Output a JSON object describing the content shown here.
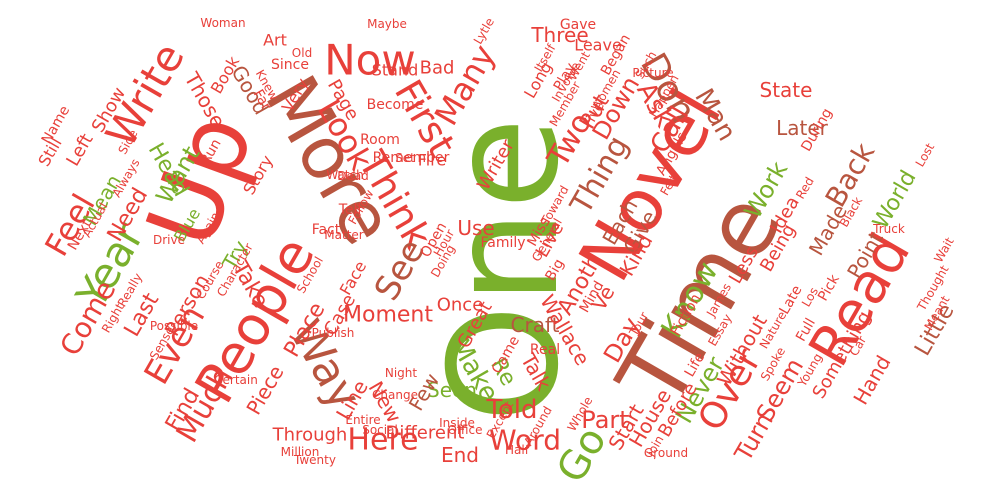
{
  "colors": {
    "red": "#e8403a",
    "brown": "#b8553f",
    "green": "#7ab02c",
    "salmon": "#e86b5a",
    "lightgreen": "#8cbf3f"
  },
  "words": [
    {
      "text": "One",
      "color": "green"
    },
    {
      "text": "Time",
      "color": "brown"
    },
    {
      "text": "Up",
      "color": "red"
    },
    {
      "text": "More",
      "color": "brown"
    },
    {
      "text": "Novel",
      "color": "red"
    },
    {
      "text": "Read",
      "color": "red"
    },
    {
      "text": "People",
      "color": "red"
    },
    {
      "text": "Write",
      "color": "red"
    },
    {
      "text": "Year",
      "color": "green"
    },
    {
      "text": "Way",
      "color": "brown"
    },
    {
      "text": "Now",
      "color": "red"
    },
    {
      "text": "First",
      "color": "red"
    },
    {
      "text": "Think",
      "color": "red"
    },
    {
      "text": "Go",
      "color": "green"
    },
    {
      "text": "See",
      "color": "brown"
    },
    {
      "text": "Even",
      "color": "red"
    },
    {
      "text": "Over",
      "color": "red"
    },
    {
      "text": "Look",
      "color": "red"
    },
    {
      "text": "Feel",
      "color": "red"
    },
    {
      "text": "Don",
      "color": "brown"
    },
    {
      "text": "Thing",
      "color": "brown"
    },
    {
      "text": "Know",
      "color": "green"
    },
    {
      "text": "Many",
      "color": "red"
    },
    {
      "text": "Two",
      "color": "red"
    },
    {
      "text": "Much",
      "color": "red"
    },
    {
      "text": "Here",
      "color": "red"
    },
    {
      "text": "Word",
      "color": "red"
    },
    {
      "text": "Make",
      "color": "green"
    },
    {
      "text": "Come",
      "color": "red"
    },
    {
      "text": "Back",
      "color": "brown"
    },
    {
      "text": "Man",
      "color": "brown"
    },
    {
      "text": "Ask",
      "color": "red"
    },
    {
      "text": "Little",
      "color": "brown"
    },
    {
      "text": "Work",
      "color": "green"
    },
    {
      "text": "World",
      "color": "green"
    },
    {
      "text": "Never",
      "color": "green"
    },
    {
      "text": "Told",
      "color": "red"
    },
    {
      "text": "Part",
      "color": "red"
    },
    {
      "text": "Day",
      "color": "red"
    },
    {
      "text": "Turn",
      "color": "red"
    },
    {
      "text": "Seem",
      "color": "red"
    },
    {
      "text": "Call",
      "color": "red"
    },
    {
      "text": "Down",
      "color": "red"
    },
    {
      "text": "Put",
      "color": "red"
    },
    {
      "text": "Want",
      "color": "green"
    },
    {
      "text": "Head",
      "color": "green"
    },
    {
      "text": "Need",
      "color": "red"
    },
    {
      "text": "Last",
      "color": "red"
    },
    {
      "text": "Person",
      "color": "red"
    },
    {
      "text": "Take",
      "color": "red"
    },
    {
      "text": "Place",
      "color": "red"
    },
    {
      "text": "Moment",
      "color": "red"
    },
    {
      "text": "Craft",
      "color": "brown"
    },
    {
      "text": "Wallace",
      "color": "red"
    },
    {
      "text": "Talk",
      "color": "red"
    },
    {
      "text": "Re",
      "color": "green"
    },
    {
      "text": "Seen",
      "color": "green"
    },
    {
      "text": "Line",
      "color": "red"
    },
    {
      "text": "New",
      "color": "red"
    },
    {
      "text": "Through",
      "color": "red"
    },
    {
      "text": "End",
      "color": "red"
    },
    {
      "text": "Find",
      "color": "red"
    },
    {
      "text": "Piece",
      "color": "red"
    },
    {
      "text": "Anoth",
      "color": "red"
    },
    {
      "text": "Ve",
      "color": "red"
    },
    {
      "text": "Start",
      "color": "red"
    },
    {
      "text": "House",
      "color": "red"
    },
    {
      "text": "Before",
      "color": "red"
    },
    {
      "text": "Without",
      "color": "red"
    },
    {
      "text": "Hand",
      "color": "red"
    },
    {
      "text": "Something",
      "color": "red"
    },
    {
      "text": "Point",
      "color": "brown"
    },
    {
      "text": "Made",
      "color": "brown"
    },
    {
      "text": "Later",
      "color": "brown"
    },
    {
      "text": "State",
      "color": "red"
    },
    {
      "text": "Each",
      "color": "brown"
    },
    {
      "text": "Give",
      "color": "brown"
    },
    {
      "text": "Kind",
      "color": "red"
    },
    {
      "text": "Use",
      "color": "red"
    },
    {
      "text": "Live",
      "color": "red"
    },
    {
      "text": "Try",
      "color": "green"
    },
    {
      "text": "Good",
      "color": "brown"
    },
    {
      "text": "Those",
      "color": "red"
    },
    {
      "text": "Left",
      "color": "red"
    },
    {
      "text": "Show",
      "color": "red"
    },
    {
      "text": "Mean",
      "color": "green"
    },
    {
      "text": "Page",
      "color": "red"
    },
    {
      "text": "Three",
      "color": "red"
    },
    {
      "text": "Writer",
      "color": "red"
    },
    {
      "text": "Bad",
      "color": "red"
    },
    {
      "text": "Once",
      "color": "red"
    },
    {
      "text": "Few",
      "color": "brown"
    },
    {
      "text": "Case",
      "color": "red"
    },
    {
      "text": "Great",
      "color": "red"
    },
    {
      "text": "Different",
      "color": "red"
    },
    {
      "text": "Idea",
      "color": "red"
    },
    {
      "text": "Being",
      "color": "red"
    },
    {
      "text": "Less",
      "color": "red"
    },
    {
      "text": "Face",
      "color": "red"
    },
    {
      "text": "Story",
      "color": "red"
    },
    {
      "text": "Very",
      "color": "red"
    },
    {
      "text": "Still",
      "color": "red"
    },
    {
      "text": "Blue",
      "color": "green"
    },
    {
      "text": "Long",
      "color": "red"
    },
    {
      "text": "Fire",
      "color": "red"
    },
    {
      "text": "Stand",
      "color": "red"
    },
    {
      "text": "Since",
      "color": "red"
    },
    {
      "text": "Mind",
      "color": "red"
    },
    {
      "text": "Real",
      "color": "red"
    },
    {
      "text": "Book",
      "color": "red"
    },
    {
      "text": "Art",
      "color": "red"
    },
    {
      "text": "Room",
      "color": "red"
    },
    {
      "text": "Name",
      "color": "red"
    },
    {
      "text": "Life",
      "color": "red"
    },
    {
      "text": "Leave",
      "color": "red"
    },
    {
      "text": "Five",
      "color": "red"
    },
    {
      "text": "Came",
      "color": "red"
    },
    {
      "text": "Fiction",
      "color": "red"
    },
    {
      "text": "Began",
      "color": "red"
    },
    {
      "text": "Open",
      "color": "red"
    },
    {
      "text": "Tell",
      "color": "red"
    },
    {
      "text": "Fact",
      "color": "red"
    },
    {
      "text": "Pick",
      "color": "red"
    },
    {
      "text": "Late",
      "color": "red"
    },
    {
      "text": "Full",
      "color": "red"
    },
    {
      "text": "Miss",
      "color": "red"
    },
    {
      "text": "Big",
      "color": "red"
    },
    {
      "text": "Family",
      "color": "red"
    },
    {
      "text": "Remember",
      "color": "red"
    },
    {
      "text": "Play",
      "color": "red"
    },
    {
      "text": "Become",
      "color": "red"
    },
    {
      "text": "Run",
      "color": "red"
    },
    {
      "text": "Next",
      "color": "red"
    },
    {
      "text": "Young",
      "color": "red"
    },
    {
      "text": "Wait",
      "color": "red"
    },
    {
      "text": "Black",
      "color": "red"
    },
    {
      "text": "Red",
      "color": "red"
    },
    {
      "text": "During",
      "color": "red"
    },
    {
      "text": "Far",
      "color": "red"
    },
    {
      "text": "Knew",
      "color": "red"
    },
    {
      "text": "Gave",
      "color": "red"
    },
    {
      "text": "Set",
      "color": "red"
    },
    {
      "text": "Dead",
      "color": "red"
    },
    {
      "text": "Angels",
      "color": "red"
    },
    {
      "text": "Felt",
      "color": "red"
    },
    {
      "text": "Happen",
      "color": "red"
    },
    {
      "text": "Lost",
      "color": "red"
    },
    {
      "text": "Side",
      "color": "red"
    },
    {
      "text": "Old",
      "color": "red"
    },
    {
      "text": "Office",
      "color": "red"
    },
    {
      "text": "Social",
      "color": "red"
    },
    {
      "text": "Twenty",
      "color": "red"
    },
    {
      "text": "Inside",
      "color": "red"
    },
    {
      "text": "Except",
      "color": "red"
    },
    {
      "text": "Whole",
      "color": "red"
    },
    {
      "text": "Around",
      "color": "red"
    },
    {
      "text": "Ground",
      "color": "red"
    },
    {
      "text": "Join",
      "color": "red"
    },
    {
      "text": "Essay",
      "color": "red"
    },
    {
      "text": "James",
      "color": "red"
    },
    {
      "text": "Nature",
      "color": "red"
    },
    {
      "text": "Spoke",
      "color": "red"
    },
    {
      "text": "Car",
      "color": "red"
    },
    {
      "text": "Hour",
      "color": "red"
    },
    {
      "text": "Half",
      "color": "red"
    },
    {
      "text": "Lytle",
      "color": "red"
    },
    {
      "text": "Maybe",
      "color": "red"
    },
    {
      "text": "Women",
      "color": "red"
    },
    {
      "text": "Woman",
      "color": "red"
    },
    {
      "text": "Million",
      "color": "red"
    },
    {
      "text": "Publish",
      "color": "red"
    },
    {
      "text": "Member",
      "color": "red"
    },
    {
      "text": "Doing",
      "color": "red"
    },
    {
      "text": "Picture",
      "color": "red"
    },
    {
      "text": "Always",
      "color": "red"
    },
    {
      "text": "Watch",
      "color": "red"
    },
    {
      "text": "Character",
      "color": "red"
    },
    {
      "text": "Thought",
      "color": "red"
    },
    {
      "text": "Change",
      "color": "red"
    },
    {
      "text": "Certain",
      "color": "red"
    },
    {
      "text": "School",
      "color": "red"
    },
    {
      "text": "General",
      "color": "red"
    },
    {
      "text": "Toward",
      "color": "red"
    },
    {
      "text": "Possible",
      "color": "red"
    },
    {
      "text": "Sense",
      "color": "red"
    },
    {
      "text": "Really",
      "color": "red"
    },
    {
      "text": "Right",
      "color": "red"
    },
    {
      "text": "Actual",
      "color": "red"
    },
    {
      "text": "Again",
      "color": "red"
    },
    {
      "text": "Course",
      "color": "red"
    },
    {
      "text": "Night",
      "color": "red"
    },
    {
      "text": "Meant",
      "color": "red"
    },
    {
      "text": "Follow",
      "color": "red"
    },
    {
      "text": "Los",
      "color": "red"
    },
    {
      "text": "Matter",
      "color": "red"
    },
    {
      "text": "Involve",
      "color": "red"
    },
    {
      "text": "Went",
      "color": "red"
    },
    {
      "text": "Itself",
      "color": "red"
    },
    {
      "text": "Drive",
      "color": "red"
    },
    {
      "text": "Truck",
      "color": "red"
    },
    {
      "text": "Entire",
      "color": "red"
    },
    {
      "text": "Such",
      "color": "red"
    },
    {
      "text": "Tour",
      "color": "red"
    },
    {
      "text": "Both",
      "color": "red"
    },
    {
      "text": "Father",
      "color": "red"
    },
    {
      "text": "Example",
      "color": "red"
    }
  ]
}
